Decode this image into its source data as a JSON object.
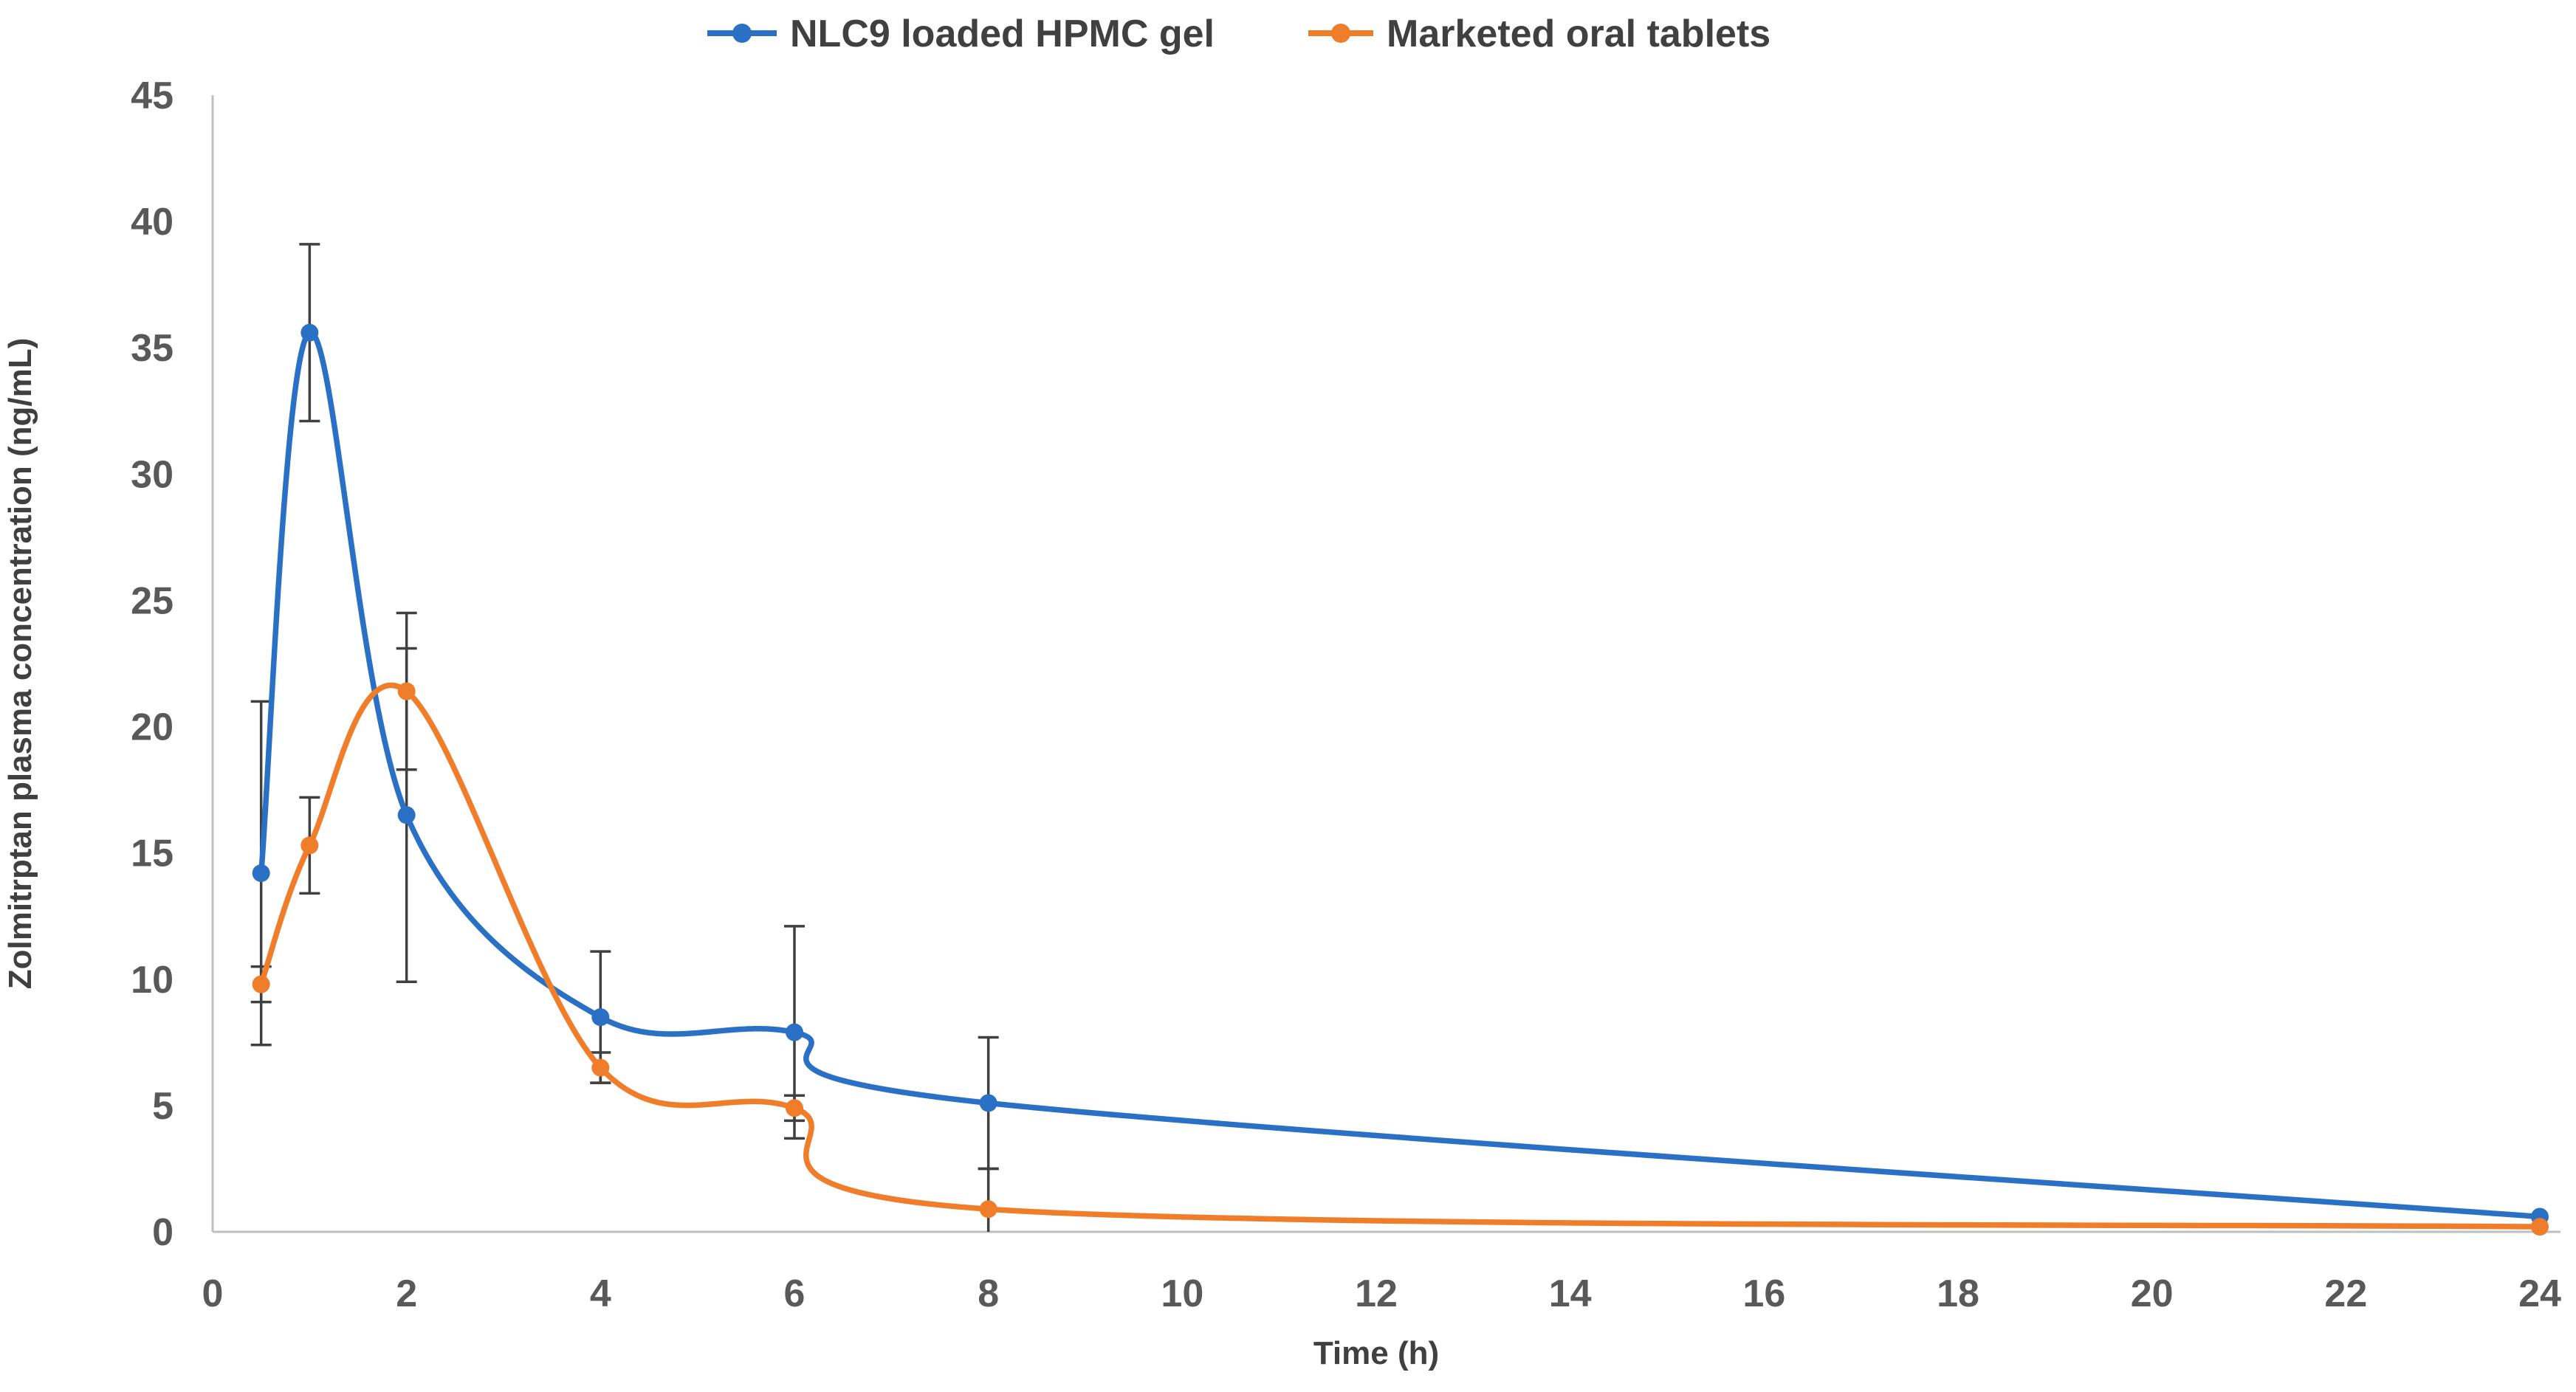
{
  "chart_data": {
    "type": "line",
    "title": "",
    "xlabel": "Time (h)",
    "ylabel": "Zolmitrptan plasma concentration (ng/mL)",
    "x": [
      0.5,
      1,
      2,
      4,
      6,
      8,
      24
    ],
    "xlim": [
      0,
      24
    ],
    "ylim": [
      0,
      45
    ],
    "x_ticks": [
      0,
      2,
      4,
      6,
      8,
      10,
      12,
      14,
      16,
      18,
      20,
      22,
      24
    ],
    "y_ticks": [
      0,
      5,
      10,
      15,
      20,
      25,
      30,
      35,
      40,
      45
    ],
    "grid": false,
    "smooth": true,
    "marker": "circle",
    "error_bars": true,
    "legend_position": "top-center",
    "series": [
      {
        "name": "NLC9 loaded HPMC gel",
        "color": "#2A71C5",
        "values": [
          14.2,
          35.6,
          16.5,
          8.5,
          7.9,
          5.1,
          0.6
        ],
        "errors": [
          6.8,
          3.5,
          6.6,
          2.6,
          4.2,
          2.6,
          0
        ]
      },
      {
        "name": "Marketed oral tablets",
        "color": "#F07D2A",
        "values": [
          9.8,
          15.3,
          21.4,
          6.5,
          4.9,
          0.9,
          0.2
        ],
        "errors": [
          0.7,
          1.9,
          3.1,
          0.6,
          0.5,
          1.6,
          0
        ]
      }
    ],
    "styles": {
      "tick_label_color": "#595959",
      "axis_title_color": "#404040",
      "legend_text_color": "#404040",
      "axis_line_color": "#BFBFBF",
      "error_bar_color": "#404040",
      "background": "#FFFFFF"
    }
  }
}
